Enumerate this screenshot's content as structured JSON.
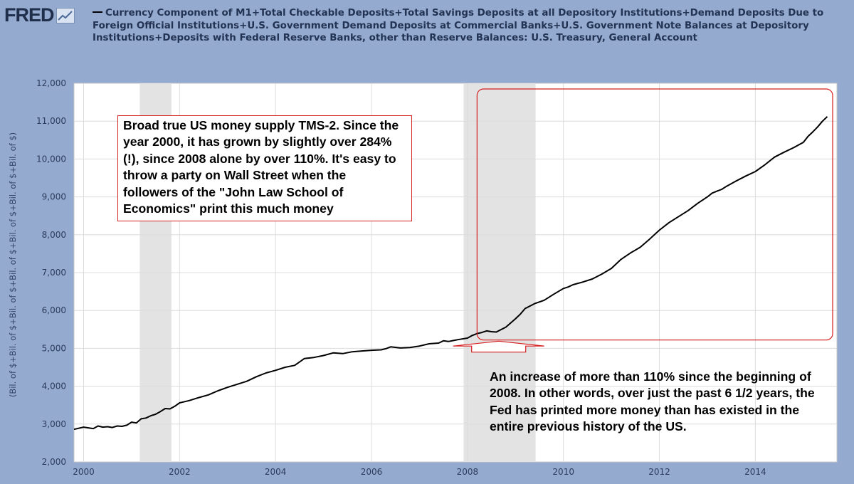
{
  "brand": {
    "logo_text": "FRED"
  },
  "header": {
    "title": "Currency Component of M1+Total Checkable Deposits+Total Savings Deposits at all Depository Institutions+Demand Deposits Due to Foreign Official Institutions+U.S. Government Demand Deposits at Commercial Banks+U.S. Government Note Balances at Depository Institutions+Deposits with Federal Reserve Banks, other than Reserve Balances: U.S. Treasury, General Account"
  },
  "colors": {
    "page_bg": "#94aacf",
    "plot_bg": "#ffffff",
    "recession": "#e3e3e3",
    "line": "#000000",
    "annotation": "#d61f1f"
  },
  "annotations": {
    "box1": "Broad true US money supply TMS-2.  Since the year 2000, it has grown by slightly over 284% (!), since 2008 alone by over 110%. It's easy to throw a party on Wall Street when the followers of the \"John Law School of Economics\" print this much money",
    "box2": "An increase of more than 110% since the beginning of 2008. In other words, over just the past 6 1/2 years, the Fed has printed more money than has existed in the entire previous history of the US."
  },
  "chart_data": {
    "type": "line",
    "title": "Currency Component of M1+Total Checkable Deposits+Total Savings Deposits at all Depository Institutions+Demand Deposits Due to Foreign Official Institutions+U.S. Government Demand Deposits at Commercial Banks+U.S. Government Note Balances at Depository Institutions+Deposits with Federal Reserve Banks, other than Reserve Balances: U.S. Treasury, General Account",
    "xlabel": "",
    "ylabel": "(Bil. of $+Bil. of $+Bil. of $+Bil. of $+Bil. of $+Bil. of $+Bil. of $)",
    "xlim": [
      1999.8,
      2015.7
    ],
    "ylim": [
      2000,
      12000
    ],
    "x_ticks": [
      2000,
      2002,
      2004,
      2006,
      2008,
      2010,
      2012,
      2014
    ],
    "y_ticks": [
      2000,
      3000,
      4000,
      5000,
      6000,
      7000,
      8000,
      9000,
      10000,
      11000,
      12000
    ],
    "y_tick_labels": [
      "2,000",
      "3,000",
      "4,000",
      "5,000",
      "6,000",
      "7,000",
      "8,000",
      "9,000",
      "10,000",
      "11,000",
      "12,000"
    ],
    "recessions": [
      [
        2001.17,
        2001.83
      ],
      [
        2007.92,
        2009.42
      ]
    ],
    "highlight_box": {
      "x": [
        2008.2,
        2015.7
      ],
      "y": [
        5220,
        11850
      ]
    },
    "arrow": {
      "x": [
        2007.7,
        2009.6
      ],
      "y": [
        4900,
        5190
      ]
    },
    "series": [
      {
        "name": "TMS-2",
        "x": [
          1999.8,
          2000.0,
          2000.1,
          2000.2,
          2000.3,
          2000.4,
          2000.5,
          2000.6,
          2000.7,
          2000.8,
          2000.9,
          2001.0,
          2001.1,
          2001.2,
          2001.3,
          2001.4,
          2001.5,
          2001.6,
          2001.7,
          2001.8,
          2001.9,
          2002.0,
          2002.2,
          2002.4,
          2002.6,
          2002.8,
          2003.0,
          2003.2,
          2003.4,
          2003.6,
          2003.8,
          2004.0,
          2004.2,
          2004.4,
          2004.6,
          2004.8,
          2005.0,
          2005.2,
          2005.4,
          2005.6,
          2005.8,
          2006.0,
          2006.2,
          2006.3,
          2006.4,
          2006.6,
          2006.8,
          2007.0,
          2007.2,
          2007.4,
          2007.5,
          2007.6,
          2007.8,
          2008.0,
          2008.1,
          2008.2,
          2008.3,
          2008.4,
          2008.5,
          2008.6,
          2008.8,
          2009.0,
          2009.1,
          2009.2,
          2009.4,
          2009.6,
          2009.8,
          2010.0,
          2010.1,
          2010.2,
          2010.4,
          2010.6,
          2010.8,
          2011.0,
          2011.2,
          2011.4,
          2011.6,
          2011.8,
          2012.0,
          2012.2,
          2012.4,
          2012.6,
          2012.8,
          2013.0,
          2013.1,
          2013.2,
          2013.3,
          2013.4,
          2013.6,
          2013.8,
          2014.0,
          2014.2,
          2014.4,
          2014.6,
          2014.8,
          2015.0,
          2015.1,
          2015.2,
          2015.3,
          2015.4,
          2015.5
        ],
        "values": [
          2860,
          2920,
          2900,
          2880,
          2950,
          2920,
          2930,
          2910,
          2950,
          2940,
          2970,
          3050,
          3030,
          3140,
          3160,
          3220,
          3260,
          3330,
          3410,
          3400,
          3470,
          3560,
          3620,
          3700,
          3770,
          3880,
          3970,
          4050,
          4130,
          4250,
          4350,
          4420,
          4500,
          4550,
          4730,
          4760,
          4810,
          4880,
          4860,
          4910,
          4930,
          4950,
          4960,
          4990,
          5040,
          5010,
          5020,
          5060,
          5120,
          5140,
          5200,
          5180,
          5230,
          5270,
          5340,
          5390,
          5420,
          5460,
          5440,
          5430,
          5560,
          5780,
          5900,
          6050,
          6180,
          6270,
          6430,
          6580,
          6620,
          6680,
          6750,
          6830,
          6960,
          7110,
          7350,
          7520,
          7670,
          7890,
          8120,
          8320,
          8480,
          8640,
          8830,
          9000,
          9100,
          9150,
          9200,
          9280,
          9420,
          9550,
          9670,
          9850,
          10050,
          10180,
          10300,
          10440,
          10600,
          10720,
          10850,
          11000,
          11120
        ]
      }
    ]
  }
}
